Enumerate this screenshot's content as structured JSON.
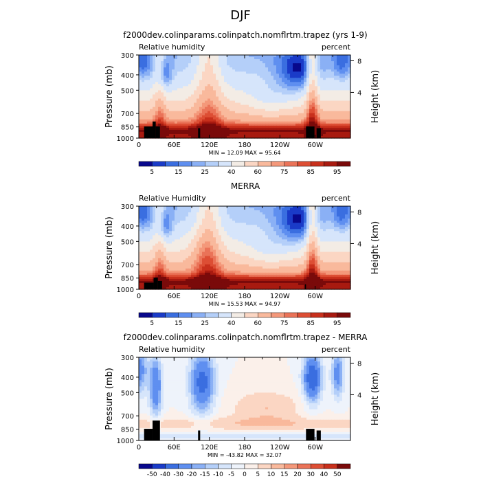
{
  "figure": {
    "title": "DJF"
  },
  "chart_data": [
    {
      "type": "heatmap",
      "title": "f2000dev.colinparams.colinpatch.nomflrtm.trapez (yrs 1-9)",
      "left_label": "Relative humidity",
      "right_label": "percent",
      "ylabel": "Pressure (mb)",
      "ylabel_right": "Height (km)",
      "x_ticks": [
        "0",
        "60E",
        "120E",
        "180",
        "120W",
        "60W"
      ],
      "y_ticks": [
        "300",
        "400",
        "500",
        "700",
        "850",
        "1000"
      ],
      "y_ticks_right": [
        "8",
        "4"
      ],
      "stats": "MIN =    12.09   MAX =    95.64",
      "colorbar": {
        "labels": [
          "5",
          "15",
          "25",
          "40",
          "60",
          "75",
          "85",
          "95"
        ]
      }
    },
    {
      "type": "heatmap",
      "title": "MERRA",
      "left_label": "Relative Humidity",
      "right_label": "percent",
      "ylabel": "Pressure (mb)",
      "ylabel_right": "Height (km)",
      "x_ticks": [
        "0",
        "60E",
        "120E",
        "180",
        "120W",
        "60W"
      ],
      "y_ticks": [
        "300",
        "400",
        "500",
        "700",
        "850",
        "1000"
      ],
      "y_ticks_right": [
        "8",
        "4"
      ],
      "stats": "MIN =    15.53   MAX =    94.97",
      "colorbar": {
        "labels": [
          "5",
          "15",
          "25",
          "40",
          "60",
          "75",
          "85",
          "95"
        ]
      }
    },
    {
      "type": "heatmap",
      "title": "f2000dev.colinparams.colinpatch.nomflrtm.trapez - MERRA",
      "left_label": "Relative humidity",
      "right_label": "percent",
      "ylabel": "Pressure (mb)",
      "ylabel_right": "Height (km)",
      "x_ticks": [
        "0",
        "60E",
        "120E",
        "180",
        "120W",
        "60W"
      ],
      "y_ticks": [
        "300",
        "400",
        "500",
        "700",
        "850",
        "1000"
      ],
      "y_ticks_right": [
        "8",
        "4"
      ],
      "stats": "MIN =   -43.82   MAX =    32.07",
      "colorbar": {
        "labels": [
          "-50",
          "-40",
          "-30",
          "-20",
          "-15",
          "-10",
          "-5",
          "0",
          "5",
          "10",
          "15",
          "20",
          "30",
          "40",
          "50"
        ]
      }
    }
  ],
  "colors": {
    "abs_ramp": [
      "#08088c",
      "#1a3bc8",
      "#3a6ee0",
      "#5f8ff0",
      "#8ab0f5",
      "#b4cff9",
      "#d6e5fb",
      "#f3ece5",
      "#fbd6c3",
      "#f9b99c",
      "#f4987a",
      "#ea7358",
      "#dd4e34",
      "#c8301c",
      "#a81a10",
      "#7a0a0a"
    ],
    "diff_ramp": [
      "#08088c",
      "#1a3bc8",
      "#3a6ee0",
      "#5f8ff0",
      "#8ab0f5",
      "#b4cff9",
      "#d6e5fb",
      "#eef3fb",
      "#fbf0ea",
      "#fbd6c3",
      "#f9b99c",
      "#f4987a",
      "#ea7358",
      "#dd4e34",
      "#c8301c",
      "#7a0a0a"
    ],
    "terrain": "#000000"
  }
}
